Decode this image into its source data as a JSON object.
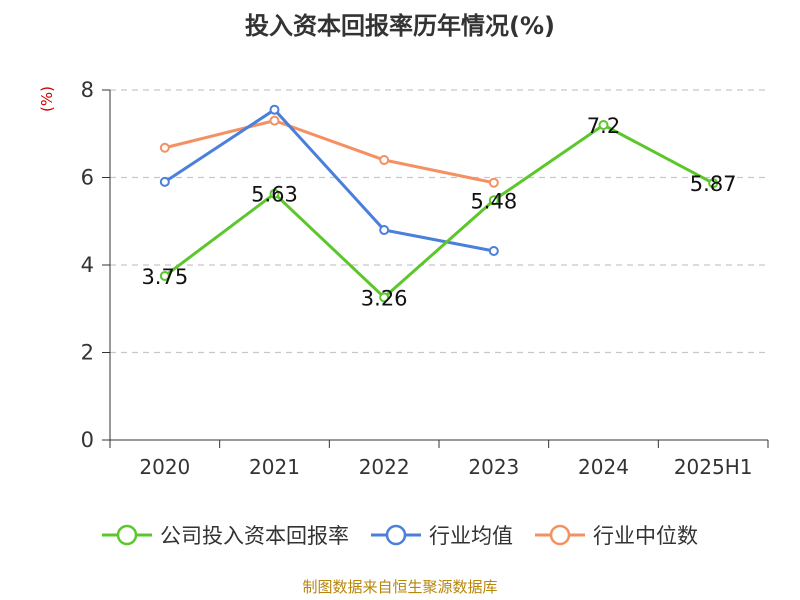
{
  "title": "投入资本回报率历年情况(%)",
  "unit_label": "(%)",
  "source": "制图数据来自恒生聚源数据库",
  "colors": {
    "company": "#5bc72b",
    "industry_avg": "#4a7fdb",
    "industry_median": "#f59062",
    "grid": "#c8c8c8",
    "axis": "#333333"
  },
  "legend": [
    {
      "label": "公司投入资本回报率",
      "color": "#5bc72b"
    },
    {
      "label": "行业均值",
      "color": "#4a7fdb"
    },
    {
      "label": "行业中位数",
      "color": "#f59062"
    }
  ],
  "chart_data": {
    "type": "line",
    "categories": [
      "2020",
      "2021",
      "2022",
      "2023",
      "2024",
      "2025H1"
    ],
    "ylim": [
      0,
      8
    ],
    "yticks": [
      0,
      2,
      4,
      6,
      8
    ],
    "grid": true,
    "legend_position": "bottom",
    "series": [
      {
        "name": "公司投入资本回报率",
        "values": [
          3.75,
          5.63,
          3.26,
          5.48,
          7.2,
          5.87
        ],
        "labels": [
          "3.75",
          "5.63",
          "3.26",
          "5.48",
          "7.2",
          "5.87"
        ]
      },
      {
        "name": "行业均值",
        "values": [
          5.9,
          7.55,
          4.8,
          4.32,
          null,
          null
        ]
      },
      {
        "name": "行业中位数",
        "values": [
          6.68,
          7.3,
          6.4,
          5.88,
          null,
          null
        ]
      }
    ]
  }
}
